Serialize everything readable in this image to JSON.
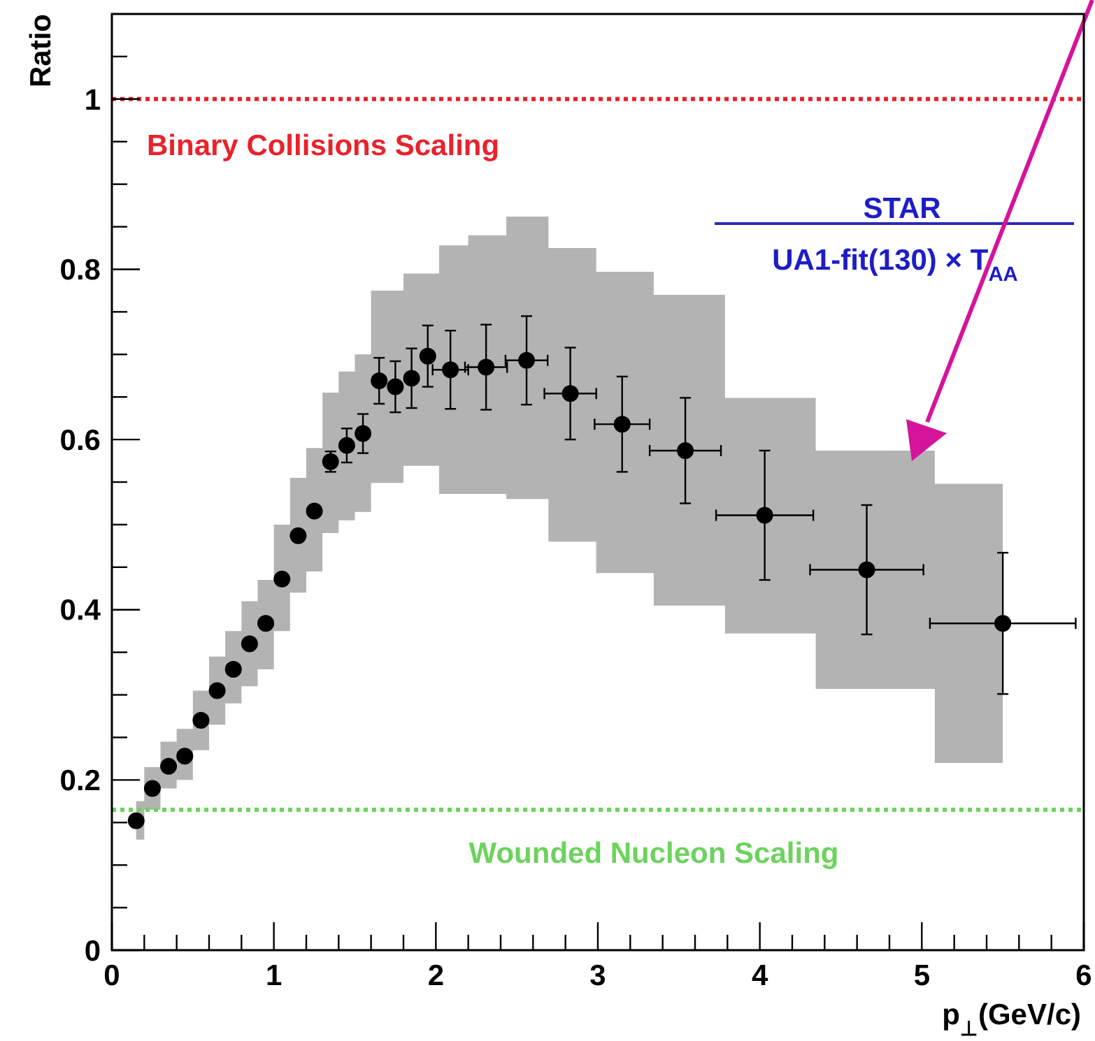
{
  "chart_data": {
    "type": "scatter",
    "xlabel": "p$_{⊥}$(GeV/c)",
    "ylabel": "Ratio",
    "xlim": [
      0,
      6
    ],
    "ylim": [
      0,
      1.1
    ],
    "xticks": [
      0,
      {
        "value": 0.2,
        "label": null
      },
      {
        "value": 0.4,
        "label": null
      },
      {
        "value": 0.6,
        "label": null
      },
      {
        "value": 0.8,
        "label": null
      },
      1,
      {
        "value": 1.2,
        "label": null
      },
      {
        "value": 1.4,
        "label": null
      },
      {
        "value": 1.6,
        "label": null
      },
      {
        "value": 1.8,
        "label": null
      },
      2,
      {
        "value": 2.2,
        "label": null
      },
      {
        "value": 2.4,
        "label": null
      },
      {
        "value": 2.6,
        "label": null
      },
      {
        "value": 2.8,
        "label": null
      },
      3,
      {
        "value": 3.2,
        "label": null
      },
      {
        "value": 3.4,
        "label": null
      },
      {
        "value": 3.6,
        "label": null
      },
      {
        "value": 3.8,
        "label": null
      },
      4,
      {
        "value": 4.2,
        "label": null
      },
      {
        "value": 4.4,
        "label": null
      },
      {
        "value": 4.6,
        "label": null
      },
      {
        "value": 4.8,
        "label": null
      },
      5,
      {
        "value": 5.2,
        "label": null
      },
      {
        "value": 5.4,
        "label": null
      },
      {
        "value": 5.6,
        "label": null
      },
      {
        "value": 5.8,
        "label": null
      },
      6
    ],
    "yticks": [
      0,
      {
        "value": 0.05,
        "label": null
      },
      {
        "value": 0.1,
        "label": null
      },
      {
        "value": 0.15,
        "label": null
      },
      0.2,
      {
        "value": 0.25,
        "label": null
      },
      {
        "value": 0.3,
        "label": null
      },
      {
        "value": 0.35,
        "label": null
      },
      0.4,
      {
        "value": 0.45,
        "label": null
      },
      {
        "value": 0.5,
        "label": null
      },
      {
        "value": 0.55,
        "label": null
      },
      0.6,
      {
        "value": 0.65,
        "label": null
      },
      {
        "value": 0.7,
        "label": null
      },
      {
        "value": 0.75,
        "label": null
      },
      0.8,
      {
        "value": 0.85,
        "label": null
      },
      {
        "value": 0.9,
        "label": null
      },
      {
        "value": 0.95,
        "label": null
      },
      1,
      {
        "value": 1.05,
        "label": null
      }
    ],
    "grid": false,
    "marker": "circle",
    "series": [
      {
        "color": "#000000",
        "x": [
          0.15,
          0.25,
          0.35,
          0.45,
          0.55,
          0.65,
          0.75,
          0.85,
          0.95,
          1.05,
          1.15,
          1.25,
          1.35,
          1.45,
          1.55,
          1.65,
          1.75,
          1.85,
          1.95,
          2.09,
          2.31,
          2.56,
          2.83,
          3.15,
          3.54,
          4.03,
          4.66,
          5.5
        ],
        "values": [
          0.152,
          0.19,
          0.216,
          0.228,
          0.27,
          0.305,
          0.33,
          0.36,
          0.384,
          0.436,
          0.487,
          0.516,
          0.574,
          0.593,
          0.607,
          0.669,
          0.662,
          0.672,
          0.698,
          0.682,
          0.685,
          0.693,
          0.654,
          0.618,
          0.587,
          0.511,
          0.447,
          0.384
        ],
        "errors": [
          null,
          null,
          null,
          null,
          null,
          null,
          null,
          null,
          null,
          null,
          null,
          null,
          0.012,
          0.02,
          0.023,
          0.027,
          0.03,
          0.035,
          0.036,
          0.046,
          0.05,
          0.052,
          0.054,
          0.056,
          0.062,
          0.076,
          0.076,
          0.083
        ],
        "xerrors": [
          null,
          null,
          null,
          null,
          null,
          null,
          null,
          null,
          null,
          null,
          null,
          null,
          null,
          null,
          null,
          null,
          null,
          null,
          null,
          0.11,
          0.13,
          0.13,
          0.16,
          0.17,
          0.22,
          0.3,
          0.35,
          0.45
        ],
        "lower": [
          0.13,
          0.165,
          0.19,
          0.2,
          0.235,
          0.265,
          0.29,
          0.31,
          0.33,
          0.375,
          0.42,
          0.445,
          0.49,
          0.505,
          0.515,
          0.549,
          0.549,
          0.569,
          0.569,
          0.536,
          0.536,
          0.53,
          0.48,
          0.443,
          0.405,
          0.372,
          0.307,
          0.22
        ],
        "upper": [
          0.175,
          0.215,
          0.245,
          0.26,
          0.305,
          0.345,
          0.375,
          0.41,
          0.435,
          0.5,
          0.555,
          0.59,
          0.655,
          0.68,
          0.7,
          0.775,
          0.775,
          0.795,
          0.795,
          0.828,
          0.84,
          0.862,
          0.825,
          0.797,
          0.77,
          0.649,
          0.587,
          0.548
        ]
      }
    ],
    "ref_lines": [
      {
        "axis": "y",
        "value": 1,
        "label": "Binary Collisions Scaling",
        "color": "#e8232b",
        "line_style": "dotted"
      },
      {
        "axis": "y",
        "value": 0.165,
        "label": "Wounded Nucleon Scaling",
        "color": "#6cd35e",
        "line_style": "dotted"
      }
    ],
    "annotations": [
      "STAR",
      "UA1-fit(130) × T$_{AA}$"
    ]
  }
}
